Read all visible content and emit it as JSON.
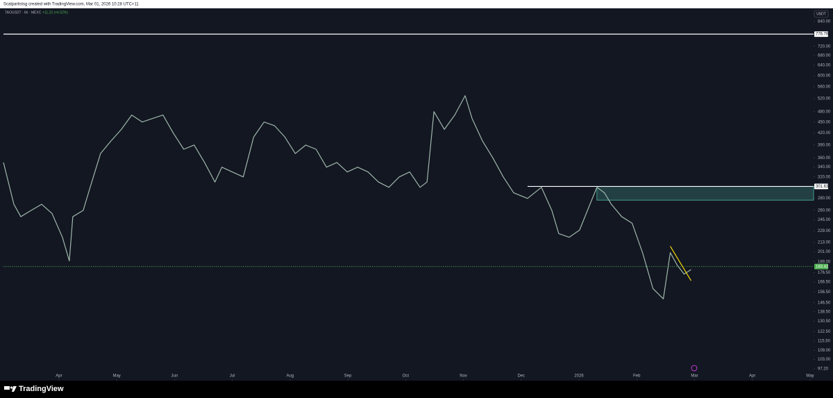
{
  "chart_data": {
    "type": "line",
    "header": "Scalpartistsg created with TradingView.com, Mar 01, 2026 10:28 UTC+11",
    "symbol": "TAOUSDT · 6h · MEXC",
    "change": "+11.23 (+6.52%)",
    "currency": "USDT",
    "brand": "TradingView",
    "log_scale": true,
    "xlim": [
      -0.96,
      13.06
    ],
    "ylim": [
      90.3,
      911.7
    ],
    "xticks": [
      {
        "value": 0,
        "label": "Apr"
      },
      {
        "value": 1,
        "label": "May"
      },
      {
        "value": 2,
        "label": "Jun"
      },
      {
        "value": 3,
        "label": "Jul"
      },
      {
        "value": 4,
        "label": "Aug"
      },
      {
        "value": 5,
        "label": "Sep"
      },
      {
        "value": 6,
        "label": "Oct"
      },
      {
        "value": 7,
        "label": "Nov"
      },
      {
        "value": 8,
        "label": "Dec"
      },
      {
        "value": 9,
        "label": "2026"
      },
      {
        "value": 10,
        "label": "Feb"
      },
      {
        "value": 11,
        "label": "Mar"
      },
      {
        "value": 12,
        "label": "Apr"
      },
      {
        "value": 13,
        "label": "May"
      }
    ],
    "yticks": [
      {
        "value": 840,
        "label": "840.00"
      },
      {
        "value": 720,
        "label": "720.00"
      },
      {
        "value": 680,
        "label": "680.00"
      },
      {
        "value": 640,
        "label": "640.00"
      },
      {
        "value": 600,
        "label": "600.00"
      },
      {
        "value": 560,
        "label": "560.00"
      },
      {
        "value": 520,
        "label": "520.00"
      },
      {
        "value": 480,
        "label": "480.00"
      },
      {
        "value": 450,
        "label": "450.00"
      },
      {
        "value": 420,
        "label": "420.00"
      },
      {
        "value": 390,
        "label": "390.00"
      },
      {
        "value": 360,
        "label": "360.00"
      },
      {
        "value": 340,
        "label": "340.00"
      },
      {
        "value": 320,
        "label": "320.00"
      },
      {
        "value": 280,
        "label": "280.00"
      },
      {
        "value": 260,
        "label": "260.00"
      },
      {
        "value": 245,
        "label": "245.00"
      },
      {
        "value": 229,
        "label": "229.00"
      },
      {
        "value": 213,
        "label": "213.00"
      },
      {
        "value": 201,
        "label": "201.00"
      },
      {
        "value": 189,
        "label": "189.00"
      },
      {
        "value": 176.5,
        "label": "176.50"
      },
      {
        "value": 166.5,
        "label": "166.50"
      },
      {
        "value": 156.5,
        "label": "156.50"
      },
      {
        "value": 146.5,
        "label": "146.50"
      },
      {
        "value": 138.5,
        "label": "138.50"
      },
      {
        "value": 130.5,
        "label": "130.50"
      },
      {
        "value": 122.5,
        "label": "122.50"
      },
      {
        "value": 115.5,
        "label": "115.50"
      },
      {
        "value": 109,
        "label": "109.00"
      },
      {
        "value": 103,
        "label": "103.00"
      },
      {
        "value": 97.2,
        "label": "97.20"
      }
    ],
    "series": [
      {
        "color": "#9fb8ab",
        "x": [
          -0.96,
          -0.78,
          -0.66,
          -0.48,
          -0.3,
          -0.12,
          0.06,
          0.18,
          0.24,
          0.42,
          0.54,
          0.72,
          0.9,
          1.08,
          1.26,
          1.44,
          1.62,
          1.8,
          1.98,
          2.16,
          2.34,
          2.52,
          2.7,
          2.82,
          3.0,
          3.19,
          3.37,
          3.55,
          3.73,
          3.91,
          4.09,
          4.27,
          4.45,
          4.63,
          4.81,
          4.99,
          5.17,
          5.35,
          5.53,
          5.71,
          5.89,
          6.07,
          6.25,
          6.37,
          6.49,
          6.67,
          6.85,
          7.03,
          7.15,
          7.33,
          7.51,
          7.69,
          7.87,
          8.11,
          8.35,
          8.53,
          8.65,
          8.83,
          9.01,
          9.19,
          9.31,
          9.44,
          9.56,
          9.74,
          9.92,
          10.1,
          10.28,
          10.46,
          10.58,
          10.7,
          10.82,
          10.94
        ],
        "values": [
          350,
          270,
          250,
          260,
          270,
          255,
          220,
          190,
          250,
          260,
          300,
          370,
          400,
          430,
          470,
          450,
          460,
          470,
          420,
          380,
          390,
          350,
          310,
          340,
          330,
          320,
          410,
          450,
          440,
          410,
          370,
          390,
          380,
          340,
          350,
          330,
          340,
          330,
          310,
          300,
          320,
          330,
          300,
          310,
          480,
          430,
          470,
          530,
          460,
          400,
          360,
          320,
          290,
          280,
          300,
          260,
          225,
          220,
          230,
          270,
          300,
          290,
          270,
          250,
          240,
          200,
          160,
          150,
          200,
          185,
          175,
          180
        ]
      }
    ],
    "levels": [
      {
        "value": 776.76,
        "color": "#ffffff",
        "label_bg": "#ffffff",
        "label_color": "#131722"
      },
      {
        "value": 301.63,
        "color": "#ffffff",
        "label_bg": "#ffffff",
        "label_color": "#131722",
        "x_start": 8.11
      },
      {
        "value": 183.42,
        "color": "#4caf50",
        "label_bg": "#4caf50",
        "label_color": "#ffffff",
        "dashed": true
      }
    ],
    "zone": {
      "low": 277,
      "high": 301.63,
      "x_start": 9.31,
      "color": "#4fb8a8"
    },
    "trendline": {
      "x": [
        10.58,
        10.94
      ],
      "y": [
        208,
        168
      ],
      "color": "#f5d90a"
    }
  }
}
